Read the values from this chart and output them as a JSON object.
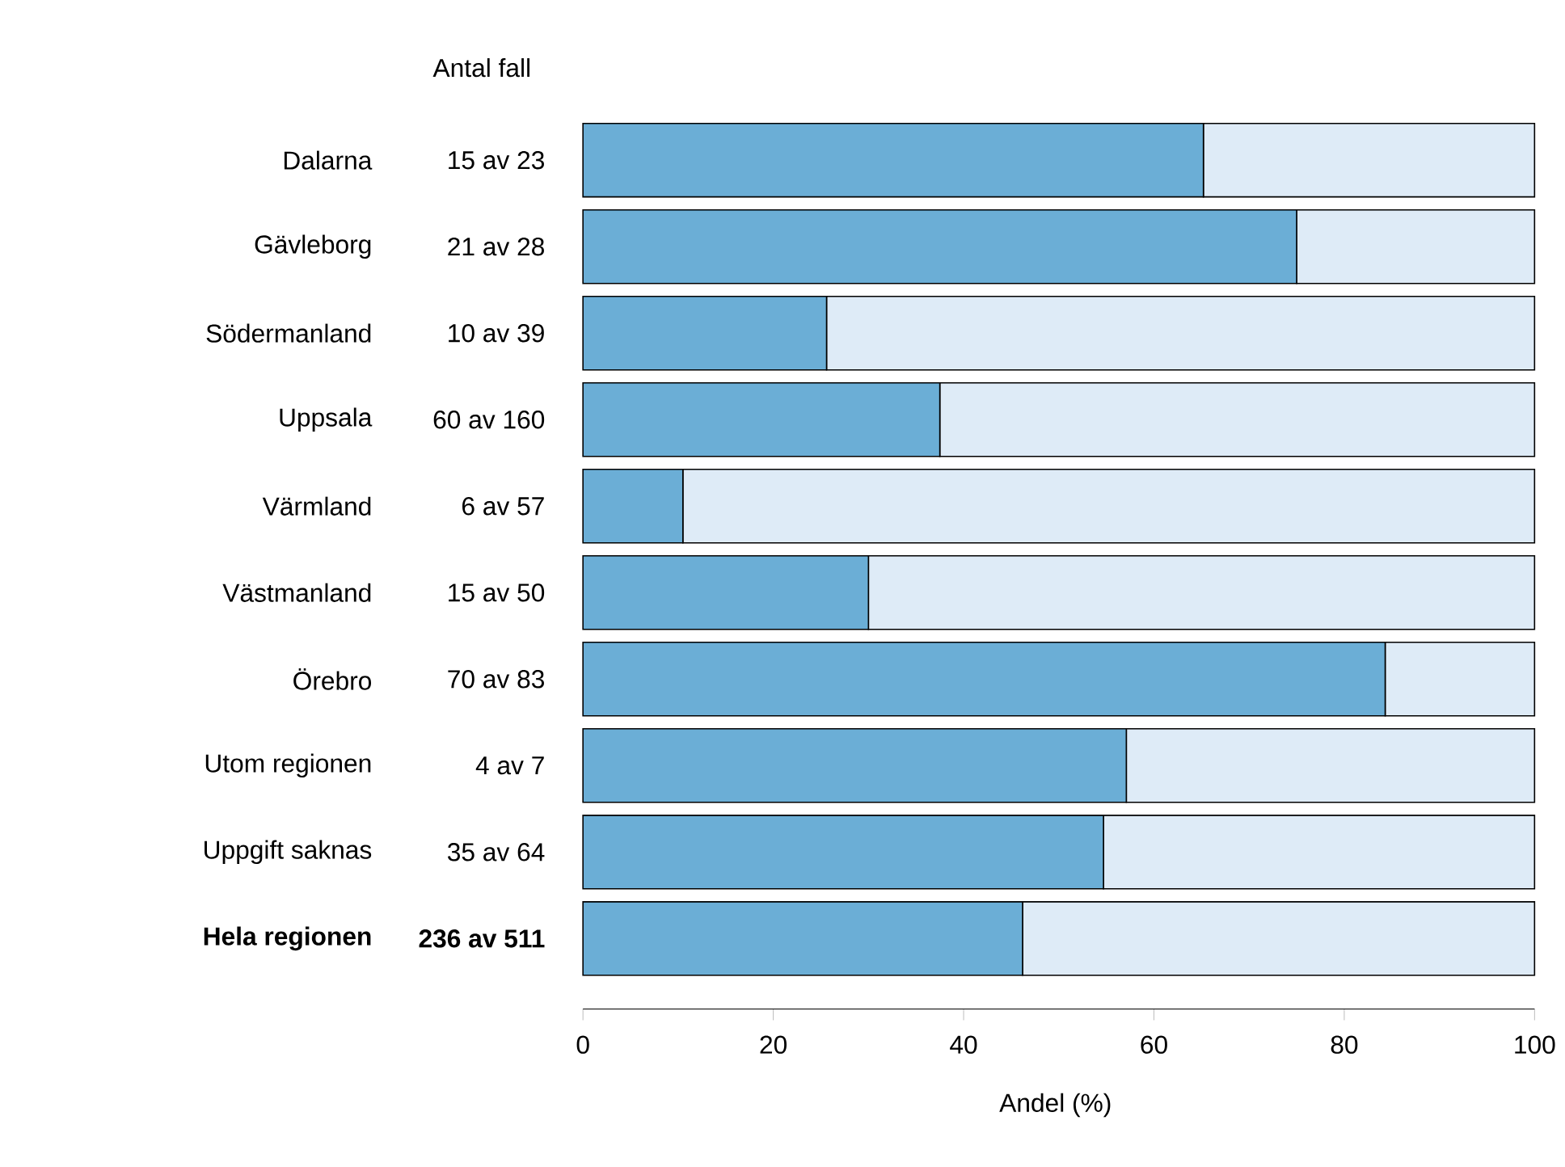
{
  "chart_data": {
    "type": "bar",
    "orientation": "horizontal",
    "stacked": true,
    "xlabel": "Andel (%)",
    "annotations": [
      "Antal fall",
      "15 av 23",
      "21 av 28",
      "10 av 39",
      "60 av 160",
      "6 av 57",
      "15 av 50",
      "70 av 83",
      "4 av 7",
      "35 av 64",
      "**236 av 511**"
    ],
    "categories": [
      "Dalarna",
      "Gävleborg",
      "Södermanland",
      "Uppsala",
      "Värmland",
      "Västmanland",
      "Örebro",
      "Utom regionen",
      "Uppgift saknas",
      "**Hela regionen**"
    ],
    "series": [
      {
        "color": "#6baed6",
        "values": [
          65.2,
          75.0,
          25.6,
          37.5,
          10.5,
          30.0,
          84.3,
          57.1,
          54.7,
          46.2
        ]
      },
      {
        "color": "#deebf7",
        "values": [
          34.8,
          25.0,
          74.4,
          62.5,
          89.5,
          70.0,
          15.7,
          42.9,
          45.3,
          53.8
        ]
      }
    ],
    "xlim": [
      0,
      100
    ],
    "xticks": [
      0,
      20,
      40,
      60,
      80,
      100
    ]
  }
}
